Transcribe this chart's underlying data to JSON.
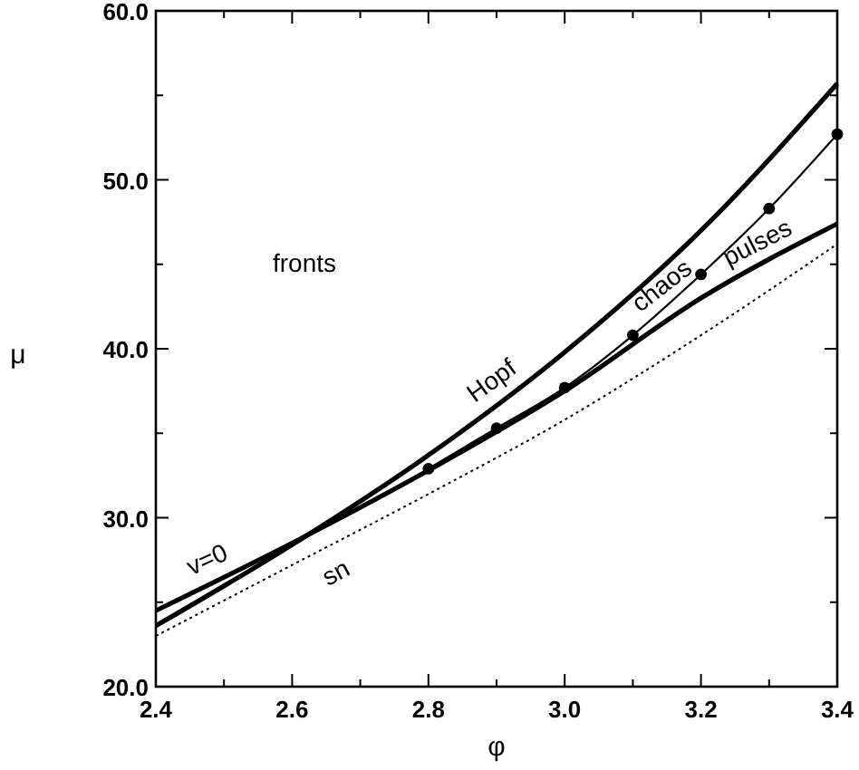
{
  "chart_data": {
    "type": "line",
    "xlabel": "φ",
    "ylabel": "μ",
    "xlim": [
      2.4,
      3.4
    ],
    "ylim": [
      20,
      60
    ],
    "xticks": [
      2.4,
      {
        "value": 2.5,
        "label": null
      },
      2.6,
      {
        "value": 2.7,
        "label": null
      },
      2.8,
      {
        "value": 2.9,
        "label": null
      },
      {
        "value": 3.0,
        "label": "3.0"
      },
      {
        "value": 3.1,
        "label": null
      },
      3.2,
      {
        "value": 3.3,
        "label": null
      },
      3.4
    ],
    "yticks": [
      {
        "value": 20,
        "label": "20.0"
      },
      {
        "value": 25,
        "label": null
      },
      {
        "value": 30,
        "label": "30.0"
      },
      {
        "value": 35,
        "label": null
      },
      {
        "value": 40,
        "label": "40.0"
      },
      {
        "value": 45,
        "label": null
      },
      {
        "value": 50,
        "label": "50.0"
      },
      {
        "value": 55,
        "label": null
      },
      {
        "value": 60,
        "label": "60.0"
      }
    ],
    "grid": false,
    "series": [
      {
        "name": "Hopf",
        "color": "#000000",
        "x": [
          2.4,
          2.6,
          2.8,
          3.0,
          3.2,
          3.4
        ],
        "values": [
          23.6,
          28.4,
          33.7,
          39.8,
          47.0,
          55.7
        ],
        "marker": "none",
        "line_style": "solid"
      },
      {
        "name": "v=0",
        "color": "#000000",
        "x": [
          2.4,
          2.6,
          2.8,
          3.0,
          3.2,
          3.4
        ],
        "values": [
          24.5,
          28.5,
          32.8,
          37.5,
          43.0,
          47.4
        ],
        "marker": "none",
        "line_style": "solid"
      },
      {
        "name": "chaos",
        "color": "#000000",
        "x": [
          2.8,
          2.9,
          3.0,
          3.1,
          3.2,
          3.3,
          3.4
        ],
        "values": [
          32.9,
          35.3,
          37.7,
          40.8,
          44.4,
          48.3,
          52.7
        ],
        "marker": "circle",
        "line_style": "solid"
      },
      {
        "name": "sn",
        "color": "#000000",
        "x": [
          2.4,
          2.6,
          2.8,
          3.0,
          3.2,
          3.4
        ],
        "values": [
          23.0,
          27.2,
          31.4,
          35.8,
          40.8,
          46.2
        ],
        "marker": "none",
        "line_style": "dotted"
      }
    ],
    "annotations": [
      "fronts",
      "pulses"
    ]
  }
}
